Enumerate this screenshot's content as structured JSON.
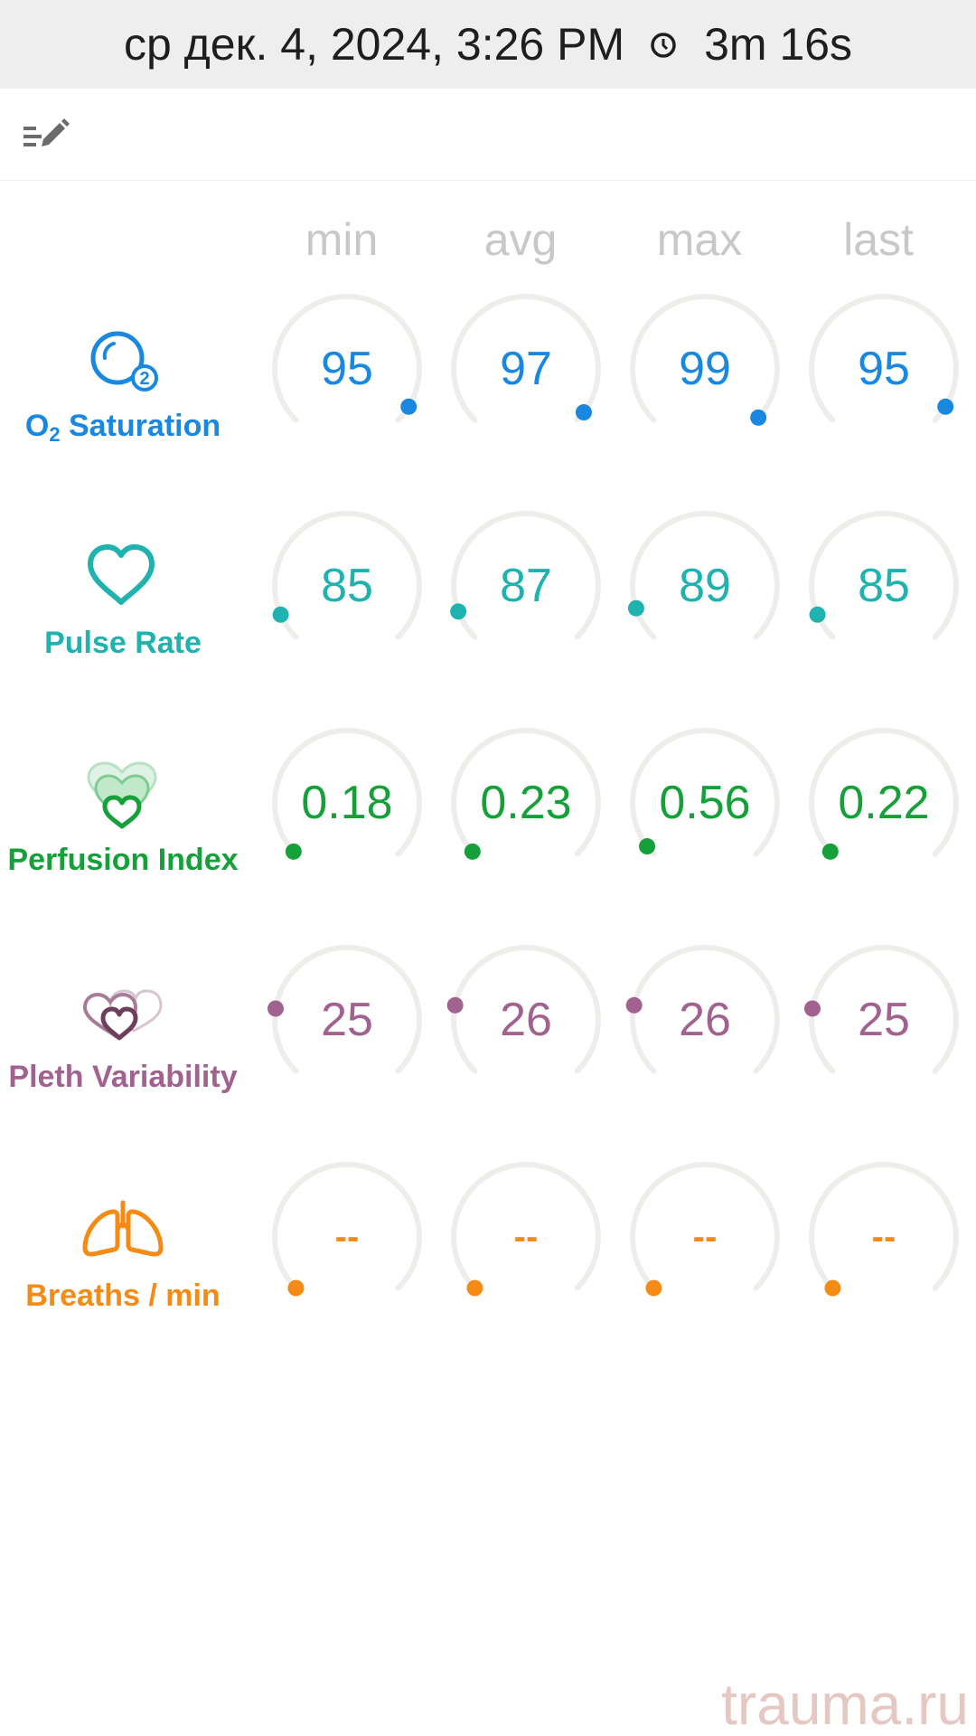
{
  "header": {
    "datetime": "ср дек. 4, 2024, 3:26 PM",
    "duration": "3m 16s",
    "clock_icon": "clock-icon"
  },
  "toolbar": {
    "edit_icon": "edit-list-icon"
  },
  "columns": [
    "min",
    "avg",
    "max",
    "last"
  ],
  "colors": {
    "o2": "#1a87e0",
    "pulse": "#1fb2ae",
    "perfusion": "#16a03a",
    "pleth": "#a26290",
    "breaths": "#f58a14",
    "ring": "#efede9",
    "header_bg": "#eeeeee"
  },
  "metrics": [
    {
      "label_main": "O",
      "label_sub": "2",
      "label_rest": " Saturation",
      "icon": "o2-bubble-icon",
      "values": [
        "95",
        "97",
        "99",
        "95"
      ],
      "levels": [
        0.95,
        0.97,
        0.99,
        0.95
      ]
    },
    {
      "label": "Pulse Rate",
      "icon": "heart-icon",
      "values": [
        "85",
        "87",
        "89",
        "85"
      ],
      "levels": [
        0.08,
        0.09,
        0.1,
        0.08
      ]
    },
    {
      "label": "Perfusion Index",
      "icon": "perfusion-hearts-icon",
      "values": [
        "0.18",
        "0.23",
        "0.56",
        "0.22"
      ],
      "levels": [
        0.01,
        0.01,
        0.03,
        0.01
      ]
    },
    {
      "label": "Pleth Variability",
      "icon": "pleth-hearts-icon",
      "values": [
        "25",
        "26",
        "26",
        "25"
      ],
      "levels": [
        0.2,
        0.21,
        0.21,
        0.2
      ]
    },
    {
      "label": "Breaths / min",
      "icon": "lungs-icon",
      "values": [
        "--",
        "--",
        "--",
        "--"
      ],
      "levels": [
        0,
        0,
        0,
        0
      ]
    }
  ],
  "watermark": "trauma.ru"
}
